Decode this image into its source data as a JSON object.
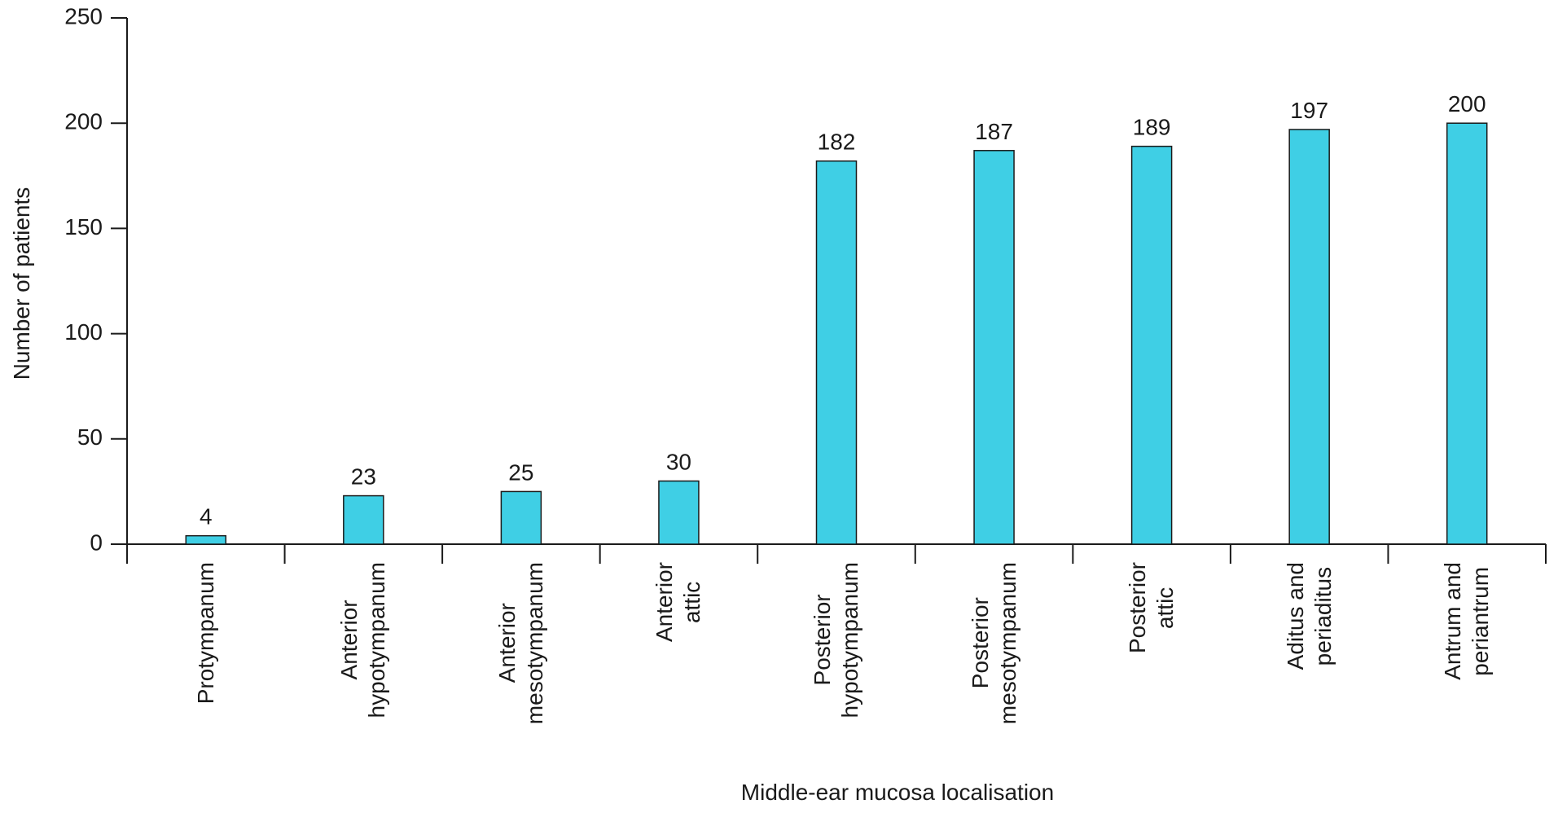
{
  "chart_data": {
    "type": "bar",
    "x_label": "Middle-ear mucosa localisation",
    "y_label": "Number of patients",
    "categories": [
      "Protympanum",
      "Anterior\nhypotympanum",
      "Anterior\nmesotympanum",
      "Anterior\nattic",
      "Posterior\nhypotympanum",
      "Posterior\nmesotympanum",
      "Posterior\nattic",
      "Aditus and\nperiaditus",
      "Antrum and\nperiantrum"
    ],
    "values": [
      4,
      23,
      25,
      30,
      182,
      187,
      189,
      197,
      200
    ],
    "color": "#3fcfe5",
    "ylim": [
      0,
      250
    ],
    "yticks": [
      0,
      50,
      100,
      150,
      200,
      250
    ],
    "grid": false
  }
}
